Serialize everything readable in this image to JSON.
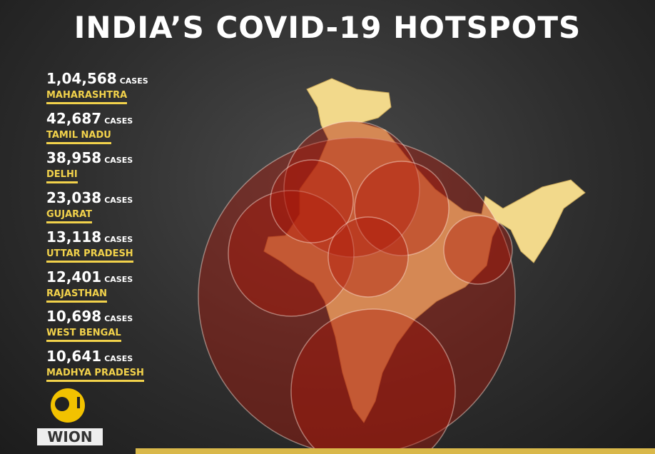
{
  "header": {
    "title": "INDIA’S COVID-19 HOTSPOTS"
  },
  "hotspots": {
    "unit": "CASES",
    "items": [
      {
        "cases": "1,04,568",
        "state": "MAHARASHTRA"
      },
      {
        "cases": "42,687",
        "state": "TAMIL NADU"
      },
      {
        "cases": "38,958",
        "state": "DELHI"
      },
      {
        "cases": "23,038",
        "state": "GUJARAT"
      },
      {
        "cases": "13,118",
        "state": "UTTAR PRADESH"
      },
      {
        "cases": "12,401",
        "state": "RAJASTHAN"
      },
      {
        "cases": "10,698",
        "state": "WEST BENGAL"
      },
      {
        "cases": "10,641",
        "state": "MADHYA PRADESH"
      }
    ]
  },
  "logo": {
    "text": "WION"
  }
}
